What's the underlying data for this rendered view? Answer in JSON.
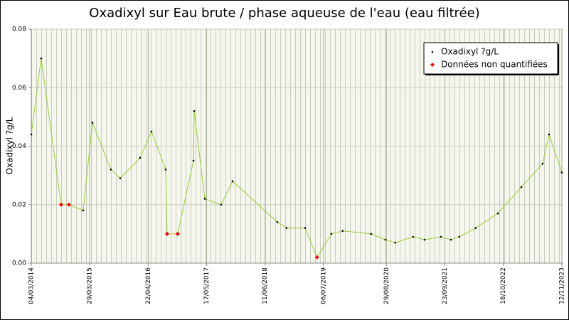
{
  "chart_data": {
    "type": "line",
    "title": "Oxadixyl sur Eau brute / phase aqueuse de l'eau (eau filtrée)",
    "y_label": "Oxadixyl ?g/L",
    "x": [
      "04/03/2014",
      "09/05/2014",
      "19/09/2014",
      "10/11/2014",
      "13/02/2015",
      "16/04/2015",
      "17/08/2015",
      "18/10/2015",
      "28/02/2016",
      "14/05/2016",
      "17/08/2016",
      "26/08/2016",
      "05/11/2016",
      "18/02/2017",
      "23/02/2017",
      "05/05/2017",
      "22/08/2017",
      "06/11/2017",
      "01/09/2018",
      "01/11/2018",
      "05/03/2019",
      "24/05/2019",
      "27/08/2019",
      "11/11/2019",
      "19/05/2020",
      "22/08/2020",
      "27/10/2020",
      "23/02/2021",
      "10/05/2021",
      "27/08/2021",
      "02/11/2021",
      "28/12/2021",
      "16/04/2022",
      "11/09/2022",
      "15/02/2023",
      "07/07/2023",
      "19/08/2023",
      "12/11/2023"
    ],
    "series": [
      {
        "name": "Oxadixyl ?g/L",
        "color": "#99cc33",
        "marker_color": "#000000",
        "values": [
          0.044,
          0.07,
          0.02,
          0.02,
          0.018,
          0.048,
          0.032,
          0.029,
          0.036,
          0.045,
          0.032,
          0.01,
          0.01,
          0.035,
          0.052,
          0.022,
          0.02,
          0.028,
          0.014,
          0.012,
          0.012,
          0.002,
          0.01,
          0.011,
          0.01,
          0.008,
          0.007,
          0.009,
          0.008,
          0.009,
          0.008,
          0.009,
          0.012,
          0.017,
          0.026,
          0.034,
          0.044,
          0.031
        ]
      },
      {
        "name": "Données non quantifiées",
        "color": "#ff0000",
        "x": [
          "19/09/2014",
          "10/11/2014",
          "26/08/2016",
          "05/11/2016",
          "24/05/2019"
        ],
        "values": [
          0.02,
          0.02,
          0.01,
          0.01,
          0.002
        ]
      }
    ],
    "xlim": [
      "04/03/2014",
      "22/11/2023"
    ],
    "xticks": [
      "04/03/2014",
      "29/03/2015",
      "22/04/2016",
      "17/05/2017",
      "11/06/2018",
      "06/07/2019",
      "29/08/2020",
      "23/09/2021",
      "18/10/2022",
      "12/11/2023"
    ],
    "ylim": [
      0,
      0.08
    ],
    "yticks": [
      {
        "value": 0,
        "label": "0.00"
      },
      0.02,
      0.04,
      0.06,
      0.08
    ],
    "grid": true,
    "legend": "upper right"
  }
}
